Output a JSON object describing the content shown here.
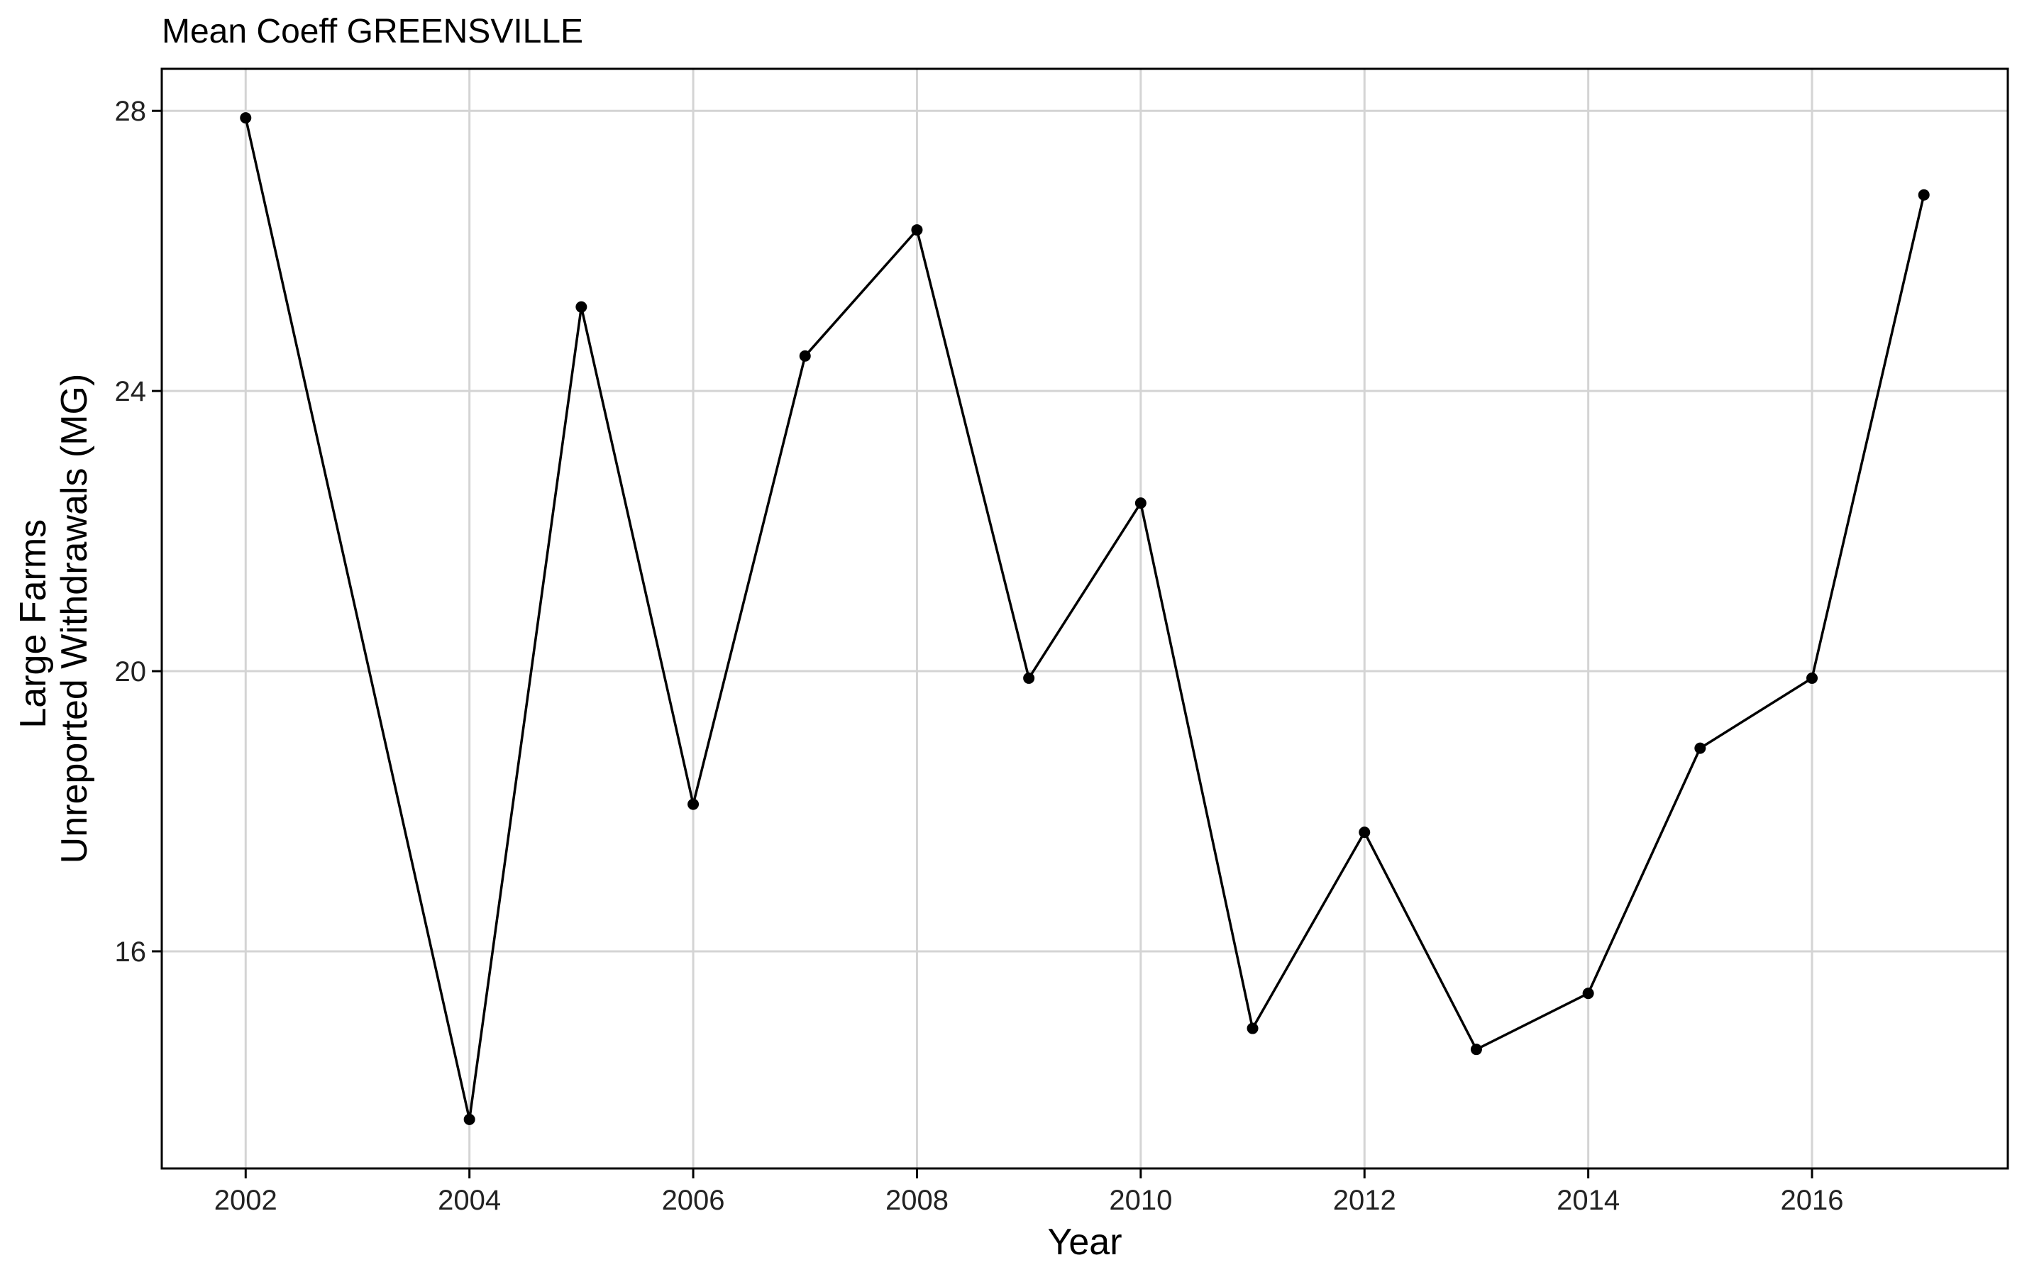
{
  "chart_data": {
    "type": "line",
    "title": "Mean Coeff GREENSVILLE",
    "xlabel": "Year",
    "ylabel_lines": [
      "Large Farms",
      "Unreported Withdrawals (MG)"
    ],
    "x": [
      2002,
      2004,
      2005,
      2006,
      2007,
      2008,
      2009,
      2010,
      2011,
      2012,
      2013,
      2014,
      2015,
      2016,
      2017
    ],
    "values": [
      27.9,
      13.6,
      25.2,
      18.1,
      24.5,
      26.3,
      19.9,
      22.4,
      14.9,
      17.7,
      14.6,
      15.4,
      18.9,
      19.9,
      26.8
    ],
    "x_ticks": [
      2002,
      2004,
      2006,
      2008,
      2010,
      2012,
      2014,
      2016
    ],
    "y_ticks": [
      16,
      20,
      24,
      28
    ],
    "xlim": [
      2001.25,
      2017.75
    ],
    "ylim": [
      12.9,
      28.6
    ],
    "grid": true,
    "legend": "none",
    "line_color": "#000000",
    "grid_color": "#d4d4d4"
  }
}
